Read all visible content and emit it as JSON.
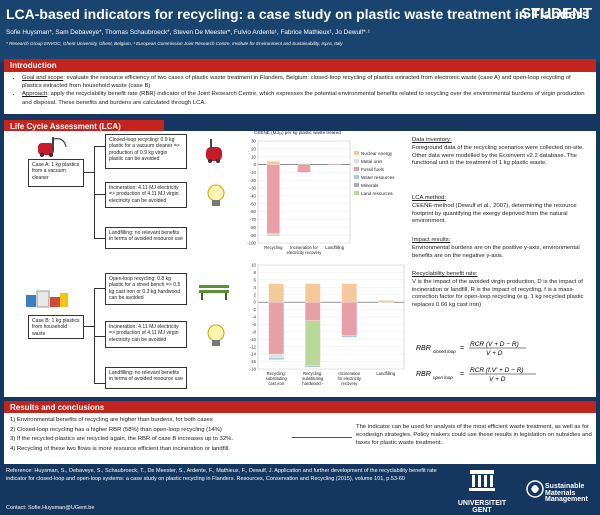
{
  "header": {
    "title": "LCA-based indicators for recycling: a case study on plastic waste treatment in Flanders",
    "badge": "STUDENT",
    "authors": "Sofie Huysman*, Sam Debaveye*, Thomas Schaubroeck*, Steven De Meester*, Fulvio Ardente¹, Fabrice Mathieux¹, Jo Dewulf*·¹",
    "affiliations": "* Research Group ENVOC, Ghent University, Ghent, Belgium, ¹ European Commission Joint Research Centre, Institute for Environment and Sustainability, Ispra, Italy"
  },
  "intro": {
    "heading": "Introduction",
    "goal_label": "Goal and scope",
    "goal_text": ": evaluate the resource efficiency of two cases of plastic waste treatment in Flanders, Belgium: closed-loop recycling of plastics extracted from electronic waste (case A) and open-loop recycling of plastics extracted from household waste (case B)",
    "approach_label": "Approach",
    "approach_text": ": apply the recyclability benefit rate (RBR) indicator of the Joint Research Centre, which expresses the potential environmental benefits related to recycling over the environmental burdens of virgin production and disposal. These benefits and burdens are calculated through LCA."
  },
  "lca": {
    "heading": "Life Cycle Assessment (LCA)",
    "caseA": {
      "label": "Case A:\n1 kg plastics from a vacuum cleaner",
      "recycling": "Closed-loop recycling: 0.9 kg plastic for a vacuum cleaner => production of 0.9 kg virgin plastic can be avoided",
      "incineration": "Incineration: 4.11 MJ electricity => production of 4.11 MJ virgin electricity can be avoided",
      "landfill": "Landfilling: no relevant benefits in terms of avoided resource use"
    },
    "caseB": {
      "label": "Case B:\n1 kg plastics from household waste",
      "recycling": "Open-loop recycling: 0.8 kg plastic for a street bench => 0.5 kg cast iron or 0.3 kg hardwood can be avoided",
      "incineration": "Incineration: 4.11 MJ electricity => production of 4.11 MJ virgin electricity can be avoided",
      "landfill": "Landfilling: no relevant benefits in terms of avoided resource use"
    },
    "right": {
      "inv_label": "Data inventory:",
      "inv_text": "Foreground data of the recycling scenarios were collected on-site. Other data were modelled by the Ecoinvent v2.2 database. The functional unit is the treatment of 1 kg plastic waste.",
      "method_label": "LCA method:",
      "method_text": "CEENE-method (Dewulf et al., 2007), determining the resource footprint by quantifying the exergy deprived from the natural environment.",
      "impact_label": "Impact results:",
      "impact_text": "Environmental burdens are on the positive y-axis, environmental benefits are on the negative y-axis.",
      "rbr_label": "Recyclability benefit rate:",
      "rbr_text": "V is the impact of the avoided virgin production, D is the impact of incineration or landfill, R is the impact of recycling, f is a mass-correction factor for open-loop recycling (e.g. 1 kg recycled plastic replaces 0.66 kg cast iron)",
      "f1_lhs": "RBR",
      "f1_sub": "closed loop",
      "f1_rhs": "= RCR (V + D − R) / (V + D)",
      "f1_num": "RCR (V + D − R)",
      "f1_den": "V + D",
      "f2_lhs": "RBR",
      "f2_sub": "open loop",
      "f2_num": "RCR (f.V′ + D − R)",
      "f2_den": "V + D"
    }
  },
  "chart_data": [
    {
      "type": "bar",
      "stacked": true,
      "title": "CEENE (MJₑₓ) per kg plastic waste treated",
      "categories": [
        "Recycling",
        "Incineration for electricity recovery",
        "Landfilling"
      ],
      "ylim": [
        -100,
        30
      ],
      "yticks": [
        30,
        20,
        10,
        0,
        -10,
        -20,
        -30,
        -40,
        -50,
        -60,
        -70,
        -80,
        -90,
        -100
      ],
      "legend_position": "right",
      "series": [
        {
          "name": "Nuclear energy",
          "color": "#f6c99a",
          "values": [
            4,
            0,
            0
          ]
        },
        {
          "name": "Metal ores",
          "color": "#e0e0e0",
          "values": [
            1,
            0,
            0
          ]
        },
        {
          "name": "Fossil fuels",
          "color": "#e8a0a8",
          "values": [
            -88,
            -10,
            1
          ]
        },
        {
          "name": "Water resources",
          "color": "#a9c8e6",
          "values": [
            -1,
            0,
            0
          ]
        },
        {
          "name": "Minerals",
          "color": "#b0a8c8",
          "values": [
            0,
            0,
            0
          ]
        },
        {
          "name": "Land resources",
          "color": "#b8d99a",
          "values": [
            -2,
            0,
            0
          ]
        }
      ],
      "positive_total": [
        15,
        5,
        1
      ]
    },
    {
      "type": "bar",
      "stacked": true,
      "categories": [
        "Recycling: substituting cast iron",
        "Recycling: substituting hardwood -",
        "Incineration for electricity recovery",
        "Landfilling"
      ],
      "ylim": [
        -18,
        10
      ],
      "yticks": [
        10,
        8,
        6,
        4,
        2,
        0,
        -2,
        -4,
        -6,
        -8,
        -10,
        -12,
        -14,
        -16,
        -18
      ],
      "series": [
        {
          "name": "Nuclear energy",
          "color": "#f6c99a",
          "values": [
            5,
            5,
            5,
            0.5
          ]
        },
        {
          "name": "Fossil fuels",
          "color": "#e8a0a8",
          "values": [
            -14,
            -5,
            -9,
            0
          ]
        },
        {
          "name": "Metal ores",
          "color": "#e0e0e0",
          "values": [
            -1,
            0,
            0,
            0
          ]
        },
        {
          "name": "Land resources",
          "color": "#b8d99a",
          "values": [
            0,
            -12,
            0,
            0
          ]
        },
        {
          "name": "Water resources",
          "color": "#a9c8e6",
          "values": [
            -0.5,
            -0.5,
            -0.5,
            0
          ]
        }
      ]
    }
  ],
  "results": {
    "heading": "Results and conclusions",
    "items": [
      "1)  Environmental benefits of recycling are higher than burdens, for both cases",
      "2)  Closed-loop recycling has a higher RBR (58%) than open-loop recycling (14%)",
      "3)  If the recycled plastics are recycled again, the RBR of case B increases up to 32%.",
      "4)  Recycling of these two flows is more resource efficient than incineration or landfill."
    ],
    "note": "The indicator can be used for analysis of the most efficient waste treatment, as well as for ecodesign strategies. Policy makers could use these results in legislation on subsidies and taxes for plastic waste treatment."
  },
  "footer": {
    "reference": "Reference: Huysman, S., Debaveye, S., Schaubroeck, T., De Meester, S., Ardente, F., Mathieux, F., Dewulf, J. Application and further development of the recyclability benefit rate indicator for closed-loop and open-loop systems: a case study on plastic recycling in Flanders. Resources, Conservation and Recycling (2015), volume 101, p.53-60",
    "contact": "Contact: Sofie.Huysman@UGent.be",
    "ugent_logo": "UNIVERSITEIT GENT",
    "sm_logo": "Sustainable Materials Management"
  }
}
